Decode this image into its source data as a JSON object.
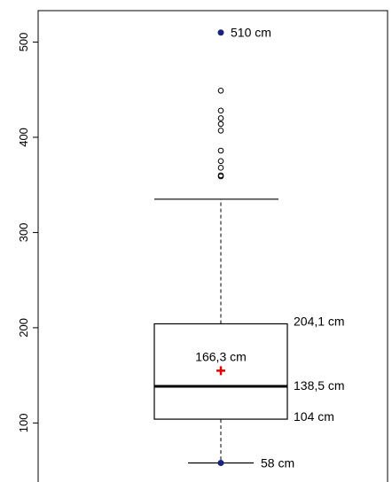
{
  "chart_data": {
    "type": "boxplot",
    "title": "",
    "xlabel": "",
    "ylabel": "",
    "y_ticks": [
      100,
      200,
      300,
      400,
      500
    ],
    "ylim": [
      38,
      533
    ],
    "grid": false,
    "box": {
      "min": 58,
      "q1": 104,
      "median": 138.5,
      "q3": 204.1,
      "mean": 166.3,
      "upper_whisker": 335,
      "max": 510
    },
    "outliers": [
      359,
      360,
      368,
      375,
      386,
      407,
      414,
      420,
      428,
      449
    ],
    "annotations": {
      "max": "510 cm",
      "min": "58 cm",
      "q3": "204,1 cm",
      "median": "138,5 cm",
      "q1": "104 cm",
      "mean": "166,3 cm"
    },
    "colors": {
      "extreme_point": "#1a237e",
      "mean_marker": "#e00000",
      "line": "#000000",
      "outlier": "#000000"
    }
  }
}
